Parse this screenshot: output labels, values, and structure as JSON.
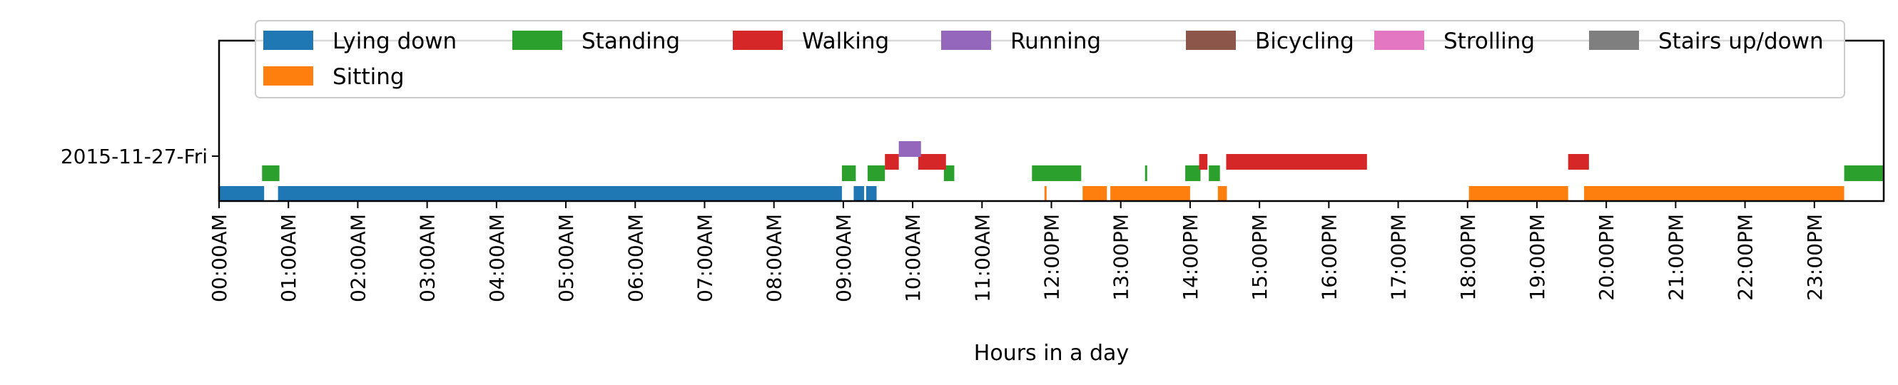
{
  "chart_data": {
    "type": "timeline",
    "title": "",
    "xlabel": "Hours in a day",
    "ylabel": "",
    "xlim": [
      0,
      24
    ],
    "x_ticks": [
      "00:00AM",
      "01:00AM",
      "02:00AM",
      "03:00AM",
      "04:00AM",
      "05:00AM",
      "06:00AM",
      "07:00AM",
      "08:00AM",
      "09:00AM",
      "10:00AM",
      "11:00AM",
      "12:00PM",
      "13:00PM",
      "14:00PM",
      "15:00PM",
      "16:00PM",
      "17:00PM",
      "18:00PM",
      "19:00PM",
      "20:00PM",
      "21:00PM",
      "22:00PM",
      "23:00PM"
    ],
    "rows": [
      "2015-11-27-Fri"
    ],
    "grid": false,
    "legend_position": "top",
    "series": [
      {
        "name": "Lying down",
        "color": "#1f77b4",
        "level": 0,
        "intervals": [
          [
            0.0,
            0.65
          ],
          [
            0.85,
            8.98
          ],
          [
            9.15,
            9.3
          ],
          [
            9.33,
            9.48
          ]
        ]
      },
      {
        "name": "Sitting",
        "color": "#ff7f0e",
        "level": 0,
        "intervals": [
          [
            11.9,
            11.93
          ],
          [
            12.45,
            12.8
          ],
          [
            12.85,
            14.0
          ],
          [
            14.4,
            14.53
          ],
          [
            18.02,
            19.45
          ],
          [
            19.68,
            23.43
          ]
        ]
      },
      {
        "name": "Standing",
        "color": "#2ca02c",
        "level": 1,
        "intervals": [
          [
            0.62,
            0.87
          ],
          [
            8.98,
            9.18
          ],
          [
            9.35,
            9.6
          ],
          [
            10.45,
            10.6
          ],
          [
            11.72,
            12.43
          ],
          [
            13.35,
            13.38
          ],
          [
            13.93,
            14.15
          ],
          [
            14.27,
            14.43
          ],
          [
            23.43,
            24.0
          ]
        ]
      },
      {
        "name": "Walking",
        "color": "#d62728",
        "level": 2,
        "intervals": [
          [
            9.6,
            9.8
          ],
          [
            10.08,
            10.48
          ],
          [
            14.13,
            14.25
          ],
          [
            14.52,
            16.55
          ],
          [
            19.45,
            19.75
          ]
        ]
      },
      {
        "name": "Running",
        "color": "#9467bd",
        "level": 3,
        "intervals": [
          [
            9.8,
            10.12
          ]
        ]
      },
      {
        "name": "Bicycling",
        "color": "#8c564b",
        "level": 4,
        "intervals": []
      },
      {
        "name": "Strolling",
        "color": "#e377c2",
        "level": 5,
        "intervals": []
      },
      {
        "name": "Stairs up/down",
        "color": "#7f7f7f",
        "level": 6,
        "intervals": []
      }
    ]
  }
}
